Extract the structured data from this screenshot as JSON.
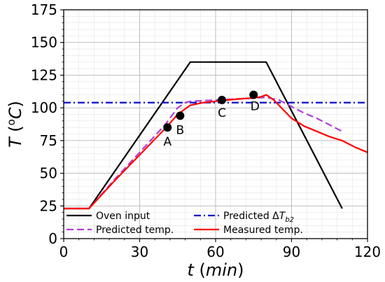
{
  "chart_data": {
    "type": "line",
    "xlabel_var": "t",
    "xlabel_unit": "min",
    "ylabel_var": "T",
    "ylabel_unit_sup": "o",
    "ylabel_unit": "C",
    "xlim": [
      0,
      120
    ],
    "ylim": [
      0,
      175
    ],
    "xticks": [
      0,
      30,
      60,
      90,
      120
    ],
    "yticks": [
      0,
      25,
      50,
      75,
      100,
      125,
      150,
      175
    ],
    "grid": true,
    "legend_placement": "lower-center",
    "series": [
      {
        "name": "Oven input",
        "color": "#000000",
        "style": "solid",
        "x": [
          0,
          10,
          50,
          80,
          110
        ],
        "y": [
          23,
          23,
          135,
          135,
          23
        ]
      },
      {
        "name": "Predicted temp.",
        "color": "#b03ed6",
        "style": "dashed",
        "x": [
          0,
          10,
          20,
          30,
          40,
          45,
          48,
          50,
          55,
          60,
          65,
          70,
          75,
          80,
          85,
          90,
          95,
          100,
          105,
          110
        ],
        "y": [
          23,
          23,
          45,
          66,
          87,
          100,
          104,
          105,
          105.5,
          106,
          106.5,
          107,
          107.5,
          108,
          106,
          101,
          96,
          92,
          87,
          82
        ]
      },
      {
        "name": "Predicted ΔT_b2",
        "legend_prefix": "Predicted Δ",
        "legend_var": "T",
        "legend_sub": "b2",
        "color": "#0000cc",
        "style": "dashdot",
        "x": [
          0,
          120
        ],
        "y": [
          104,
          104
        ]
      },
      {
        "name": "Measured temp.",
        "color": "#ff0000",
        "style": "solid",
        "x": [
          0,
          10,
          20,
          30,
          40,
          45,
          50,
          55,
          60,
          65,
          70,
          75,
          78,
          80,
          83,
          86,
          90,
          95,
          100,
          105,
          110,
          115,
          120
        ],
        "y": [
          23,
          23,
          44,
          64,
          84,
          95,
          102,
          104,
          105,
          106,
          107,
          107.5,
          108.5,
          110,
          106,
          100,
          92,
          86,
          82,
          78,
          75,
          70,
          66
        ]
      }
    ],
    "points": [
      {
        "label": "A",
        "x": 41,
        "y": 85
      },
      {
        "label": "B",
        "x": 46,
        "y": 94
      },
      {
        "label": "C",
        "x": 62.5,
        "y": 106
      },
      {
        "label": "D",
        "x": 75,
        "y": 110
      }
    ]
  }
}
